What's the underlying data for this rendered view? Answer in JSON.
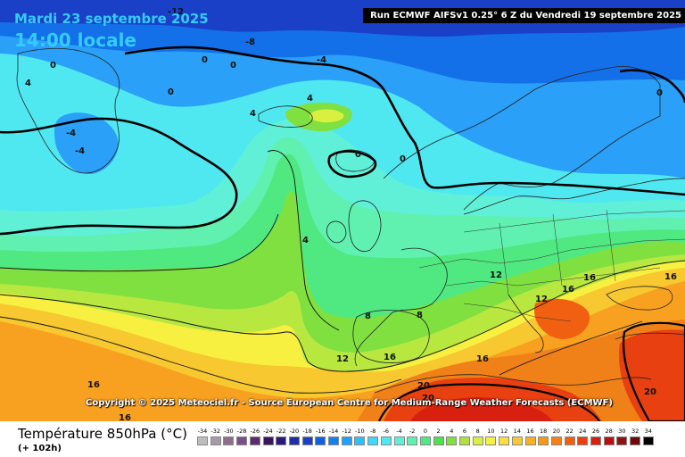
{
  "header": {
    "date": "Mardi 23 septembre 2025",
    "time": "14:00 locale",
    "run_info": "Run ECMWF AIFSv1 0.25° 6 Z du Vendredi 19 septembre 2025"
  },
  "footer": {
    "parameter": "Température 850hPa (°C)",
    "lead_time": "(+ 102h)",
    "copyright": "Copyright © 2025 Meteociel.fr - Source European Centre for Medium-Range Weather Forecasts (ECMWF)"
  },
  "legend": {
    "labels": [
      "-34",
      "-32",
      "-30",
      "-28",
      "-26",
      "-24",
      "-22",
      "-20",
      "-18",
      "-16",
      "-14",
      "-12",
      "-10",
      "-8",
      "-6",
      "-4",
      "-2",
      "0",
      "2",
      "4",
      "6",
      "8",
      "10",
      "12",
      "14",
      "16",
      "18",
      "20",
      "22",
      "24",
      "26",
      "28",
      "30",
      "32",
      "34"
    ],
    "colors": [
      "#bdbdbd",
      "#a89aa8",
      "#8d6f8d",
      "#7a4f86",
      "#5c2a6e",
      "#3a1560",
      "#2a1a7a",
      "#2030a0",
      "#1a40c8",
      "#1060e0",
      "#1480f0",
      "#20a0f8",
      "#30c0f8",
      "#40d8f8",
      "#50e8f0",
      "#60f0d8",
      "#60f0b0",
      "#50e880",
      "#50e050",
      "#80e040",
      "#b0e040",
      "#d8f040",
      "#f8f040",
      "#f8e040",
      "#f8c830",
      "#f8b020",
      "#f89818",
      "#f88018",
      "#f06010",
      "#e84010",
      "#d82010",
      "#b81010",
      "#901010",
      "#700808",
      "#000000"
    ]
  },
  "map": {
    "colors": {
      "deep_blue": "#1a40c8",
      "blue": "#1470e8",
      "mid_blue": "#2aa0f8",
      "cyan": "#50e8f0",
      "light_cyan": "#60f0d8",
      "aqua_green": "#60f0b0",
      "green": "#50e880",
      "lime": "#80e040",
      "yellow_green": "#b8e840",
      "yellow": "#f8f040",
      "light_orange": "#f8c830",
      "orange": "#f8a020",
      "dark_orange": "#f08018",
      "red": "#e84010",
      "dark_red": "#b81010"
    },
    "isotherm_labels": [
      "-12",
      "-8",
      "0",
      "0",
      "-4",
      "4",
      "0",
      "4",
      "-4",
      "-4",
      "0",
      "0",
      "0",
      "4",
      "4",
      "8",
      "8",
      "12",
      "16",
      "16",
      "16",
      "12",
      "16",
      "16",
      "20",
      "20",
      "20",
      "16",
      "16",
      "12",
      "0"
    ]
  }
}
